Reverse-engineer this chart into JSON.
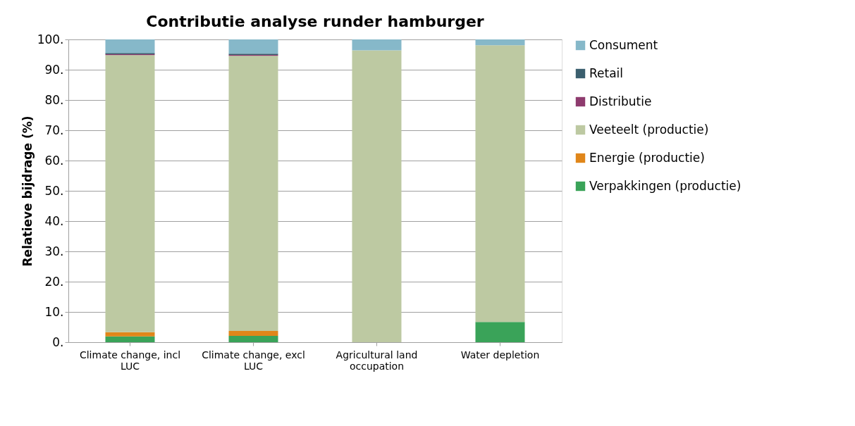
{
  "chart_data": {
    "type": "bar",
    "title": "Contributie analyse runder hamburger",
    "ylabel": "Relatieve bijdrage (%)",
    "categories": [
      "Climate change, incl LUC",
      "Climate change, excl LUC",
      "Agricultural land occupation",
      "Water depletion"
    ],
    "stacked": true,
    "series": [
      {
        "name": "Verpakkingen (productie)",
        "color": "#3aa359",
        "values": [
          1.9,
          2.1,
          0,
          6.7
        ]
      },
      {
        "name": "Energie (productie)",
        "color": "#e0861a",
        "values": [
          1.4,
          1.6,
          0,
          0
        ]
      },
      {
        "name": "Veeteelt (productie)",
        "color": "#bdc9a2",
        "values": [
          91.5,
          90.9,
          96.4,
          91.4
        ]
      },
      {
        "name": "Distributie",
        "color": "#8e3b6e",
        "values": [
          0.3,
          0.3,
          0,
          0
        ]
      },
      {
        "name": "Retail",
        "color": "#3b5f6e",
        "values": [
          0.4,
          0.4,
          0,
          0
        ]
      },
      {
        "name": "Consument",
        "color": "#86b8c9",
        "values": [
          4.5,
          4.7,
          3.6,
          1.9
        ]
      }
    ],
    "ylim": [
      0,
      100
    ],
    "yticks": [
      {
        "value": 0,
        "label": "0."
      },
      {
        "value": 10,
        "label": "10."
      },
      {
        "value": 20,
        "label": "20."
      },
      {
        "value": 30,
        "label": "30."
      },
      {
        "value": 40,
        "label": "40."
      },
      {
        "value": 50,
        "label": "50."
      },
      {
        "value": 60,
        "label": "60."
      },
      {
        "value": 70,
        "label": "70."
      },
      {
        "value": 80,
        "label": "80."
      },
      {
        "value": 90,
        "label": "90."
      },
      {
        "value": 100,
        "label": "100."
      }
    ],
    "grid": "y",
    "legend": "right"
  }
}
